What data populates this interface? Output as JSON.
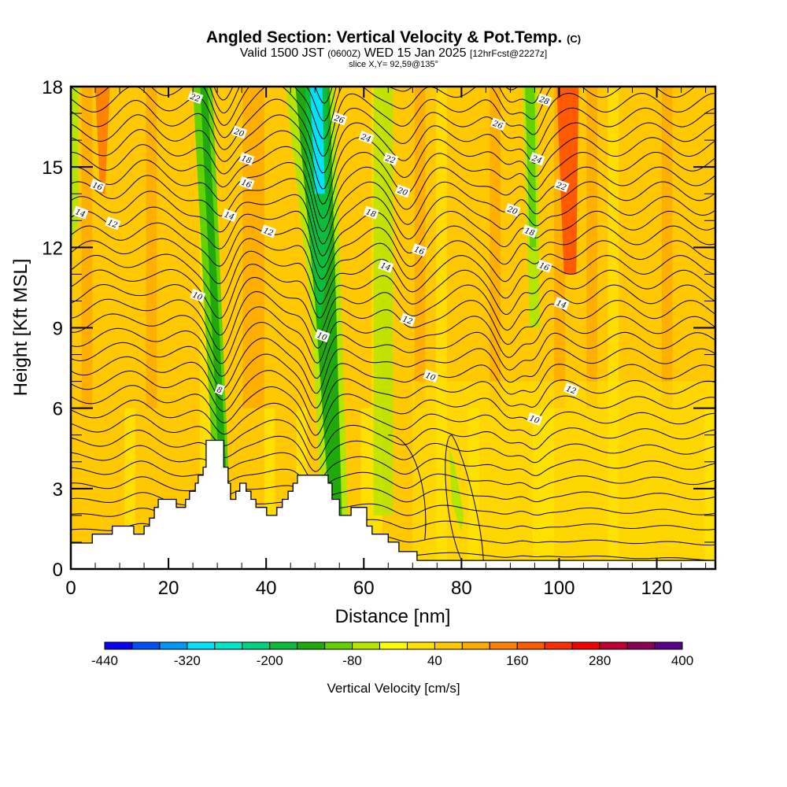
{
  "header": {
    "title_main": "Angled Section: Vertical Velocity & Pot.Temp.",
    "title_copyright": "(C)",
    "valid_prefix": "Valid 1500 JST",
    "valid_utc": "(0600Z)",
    "valid_date": "WED 15 Jan 2025",
    "forecast_info": "[12hrFcst@2227z]",
    "slice_info": "slice X,Y= 92,59@135°"
  },
  "chart_data": {
    "type": "heatmap",
    "title": "Angled Section: Vertical Velocity & Pot.Temp.",
    "xlabel": "Distance [nm]",
    "ylabel": "Height [Kft MSL]",
    "xlim": [
      0,
      132
    ],
    "ylim": [
      0,
      18
    ],
    "x_ticks": [
      "0",
      "20",
      "40",
      "60",
      "80",
      "100",
      "120"
    ],
    "y_ticks": [
      "0",
      "3",
      "6",
      "9",
      "12",
      "15",
      "18"
    ],
    "colorbar": {
      "title": "Vertical Velocity [cm/s]",
      "min": -440,
      "max": 400,
      "step": 40,
      "tick_labels": [
        "-440",
        "-320",
        "-200",
        "-80",
        "40",
        "160",
        "280",
        "400"
      ],
      "colors": [
        "#0a00f5",
        "#0050fa",
        "#0096fa",
        "#00e1fa",
        "#00e6c8",
        "#00d282",
        "#0abe3c",
        "#1eaa0a",
        "#64d200",
        "#b4e600",
        "#faff00",
        "#ffe100",
        "#ffc800",
        "#ffaa00",
        "#ff8200",
        "#ff5a00",
        "#ff2d00",
        "#f50000",
        "#be0032",
        "#8c0050",
        "#5a008c"
      ]
    },
    "velocity_field_bands": [
      {
        "x_from": 0,
        "x_to": 2,
        "value": -60
      },
      {
        "x_from": 5,
        "x_to": 12,
        "value": 120
      },
      {
        "x_from": 28,
        "x_to": 33,
        "value": -140
      },
      {
        "x_from": 47,
        "x_to": 52,
        "value": -300
      },
      {
        "x_from": 62,
        "x_to": 66,
        "value": -60
      },
      {
        "x_from": 76,
        "x_to": 81,
        "value": -80
      },
      {
        "x_from": 93,
        "x_to": 96,
        "value": -100
      },
      {
        "x_from": 100,
        "x_to": 104,
        "value": 160
      }
    ],
    "terrain": [
      [
        0,
        0.97
      ],
      [
        4.4,
        0.97
      ],
      [
        4.4,
        1.3
      ],
      [
        8.5,
        1.3
      ],
      [
        8.5,
        1.6
      ],
      [
        12.9,
        1.6
      ],
      [
        12.9,
        1.3
      ],
      [
        15,
        1.3
      ],
      [
        15,
        1.6
      ],
      [
        16.1,
        1.6
      ],
      [
        16.1,
        1.9
      ],
      [
        17.1,
        1.9
      ],
      [
        17.1,
        2.3
      ],
      [
        17.9,
        2.3
      ],
      [
        17.9,
        2.6
      ],
      [
        21.6,
        2.6
      ],
      [
        21.6,
        2.3
      ],
      [
        23.5,
        2.3
      ],
      [
        23.5,
        2.6
      ],
      [
        24.3,
        2.6
      ],
      [
        24.3,
        2.9
      ],
      [
        25.5,
        2.9
      ],
      [
        25.5,
        3.2
      ],
      [
        26.1,
        3.2
      ],
      [
        26.1,
        3.5
      ],
      [
        27.1,
        3.5
      ],
      [
        27.1,
        3.8
      ],
      [
        27.7,
        3.8
      ],
      [
        27.7,
        4.8
      ],
      [
        31.3,
        4.8
      ],
      [
        31.3,
        3.8
      ],
      [
        32.2,
        3.8
      ],
      [
        32.2,
        3.2
      ],
      [
        32.7,
        3.2
      ],
      [
        32.7,
        2.6
      ],
      [
        33.8,
        2.6
      ],
      [
        33.8,
        2.9
      ],
      [
        34.6,
        2.9
      ],
      [
        34.6,
        3.2
      ],
      [
        35.9,
        3.2
      ],
      [
        35.9,
        2.9
      ],
      [
        36.9,
        2.9
      ],
      [
        36.9,
        2.6
      ],
      [
        37.9,
        2.6
      ],
      [
        37.9,
        2.3
      ],
      [
        40.1,
        2.3
      ],
      [
        40.1,
        2.0
      ],
      [
        42.2,
        2.0
      ],
      [
        42.2,
        2.3
      ],
      [
        43.3,
        2.3
      ],
      [
        43.3,
        2.6
      ],
      [
        44.5,
        2.6
      ],
      [
        44.5,
        2.9
      ],
      [
        45.5,
        2.9
      ],
      [
        45.5,
        3.2
      ],
      [
        46.4,
        3.2
      ],
      [
        46.4,
        3.5
      ],
      [
        52.7,
        3.5
      ],
      [
        52.7,
        3.2
      ],
      [
        53.5,
        3.2
      ],
      [
        53.5,
        2.6
      ],
      [
        55,
        2.6
      ],
      [
        55,
        2.0
      ],
      [
        57.4,
        2.0
      ],
      [
        57.4,
        2.3
      ],
      [
        60.6,
        2.3
      ],
      [
        60.6,
        1.6
      ],
      [
        61.7,
        1.6
      ],
      [
        61.7,
        1.3
      ],
      [
        65,
        1.3
      ],
      [
        65,
        1.0
      ],
      [
        67.2,
        1.0
      ],
      [
        67.2,
        0.65
      ],
      [
        70.9,
        0.65
      ],
      [
        70.9,
        0.32
      ],
      [
        132,
        0.32
      ]
    ],
    "contours": {
      "variable": "Potential Temperature",
      "labels": [
        {
          "text": "22",
          "x": 25.5,
          "y": 17.6
        },
        {
          "text": "20",
          "x": 34.5,
          "y": 16.3
        },
        {
          "text": "18",
          "x": 36,
          "y": 15.3
        },
        {
          "text": "16",
          "x": 36,
          "y": 14.4
        },
        {
          "text": "14",
          "x": 32.5,
          "y": 13.2
        },
        {
          "text": "12",
          "x": 40.5,
          "y": 12.6
        },
        {
          "text": "16",
          "x": 5.5,
          "y": 14.3
        },
        {
          "text": "14",
          "x": 2,
          "y": 13.3
        },
        {
          "text": "12",
          "x": 8.6,
          "y": 12.9
        },
        {
          "text": "26",
          "x": 55,
          "y": 16.8
        },
        {
          "text": "24",
          "x": 60.5,
          "y": 16.1
        },
        {
          "text": "22",
          "x": 65.5,
          "y": 15.3
        },
        {
          "text": "20",
          "x": 68,
          "y": 14.1
        },
        {
          "text": "18",
          "x": 61.5,
          "y": 13.3
        },
        {
          "text": "16",
          "x": 71.4,
          "y": 11.9
        },
        {
          "text": "14",
          "x": 64.5,
          "y": 11.3
        },
        {
          "text": "12",
          "x": 69,
          "y": 9.3
        },
        {
          "text": "10",
          "x": 73.7,
          "y": 7.2
        },
        {
          "text": "28",
          "x": 97,
          "y": 17.5
        },
        {
          "text": "26",
          "x": 87.5,
          "y": 16.6
        },
        {
          "text": "24",
          "x": 95.5,
          "y": 15.3
        },
        {
          "text": "22",
          "x": 100.5,
          "y": 14.3
        },
        {
          "text": "20",
          "x": 90.5,
          "y": 13.4
        },
        {
          "text": "18",
          "x": 94,
          "y": 12.6
        },
        {
          "text": "16",
          "x": 97,
          "y": 11.3
        },
        {
          "text": "14",
          "x": 100.5,
          "y": 9.9
        },
        {
          "text": "12",
          "x": 102.5,
          "y": 6.7
        },
        {
          "text": "10",
          "x": 95,
          "y": 5.6
        },
        {
          "text": "10",
          "x": 26,
          "y": 10.2
        },
        {
          "text": "10",
          "x": 51.5,
          "y": 8.7
        },
        {
          "text": "8",
          "x": 30.5,
          "y": 6.7
        }
      ]
    }
  }
}
